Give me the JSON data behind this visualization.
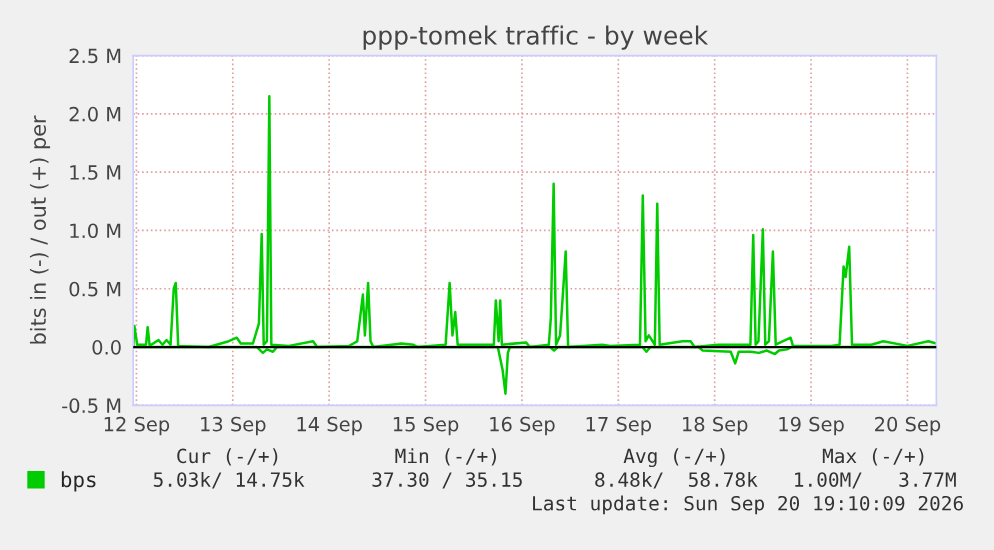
{
  "chart_data": {
    "type": "line",
    "title": "ppp-tomek traffic - by week",
    "ylabel": "bits in (-) / out (+) per",
    "xlim": [
      "2026-09-12T11:12",
      "2026-09-20T19:12"
    ],
    "xticks": [
      {
        "value": "2026-09-12T12:00",
        "label": "12 Sep"
      },
      {
        "value": "2026-09-13T12:00",
        "label": "13 Sep"
      },
      {
        "value": "2026-09-14T12:00",
        "label": "14 Sep"
      },
      {
        "value": "2026-09-15T12:00",
        "label": "15 Sep"
      },
      {
        "value": "2026-09-16T12:00",
        "label": "16 Sep"
      },
      {
        "value": "2026-09-17T12:00",
        "label": "17 Sep"
      },
      {
        "value": "2026-09-18T12:00",
        "label": "18 Sep"
      },
      {
        "value": "2026-09-19T12:00",
        "label": "19 Sep"
      },
      {
        "value": "2026-09-20T12:00",
        "label": "20 Sep"
      }
    ],
    "ylim": [
      -0.5,
      2.5
    ],
    "yticks": [
      {
        "value": -0.5,
        "label": "-0.5 M"
      },
      {
        "value": 0,
        "label": "0.0"
      },
      {
        "value": 0.5,
        "label": "0.5 M"
      },
      {
        "value": 1.0,
        "label": "1.0 M"
      },
      {
        "value": 1.5,
        "label": "1.5 M"
      },
      {
        "value": 2.0,
        "label": "2.0 M"
      },
      {
        "value": 2.5,
        "label": "2.5 M"
      }
    ],
    "grid": true,
    "legend": "bottom",
    "ref_lines": [
      {
        "axis": "y",
        "value": 0,
        "color": "#000000"
      }
    ],
    "series": [
      {
        "name": "bps",
        "color": "#00cc00",
        "x": [
          "2026-09-12T11:12",
          "2026-09-12T11:30",
          "2026-09-12T12:12",
          "2026-09-12T14:24",
          "2026-09-12T14:48",
          "2026-09-12T15:18",
          "2026-09-12T17:30",
          "2026-09-12T18:30",
          "2026-09-12T19:30",
          "2026-09-12T20:30",
          "2026-09-12T21:18",
          "2026-09-12T21:48",
          "2026-09-12T22:24",
          "2026-09-13T06:00",
          "2026-09-13T11:00",
          "2026-09-13T13:00",
          "2026-09-13T14:00",
          "2026-09-13T17:00",
          "2026-09-13T18:30",
          "2026-09-13T19:12",
          "2026-09-13T19:42",
          "2026-09-13T20:30",
          "2026-09-13T21:06",
          "2026-09-13T21:36",
          "2026-09-14T02:00",
          "2026-09-14T08:00",
          "2026-09-14T09:00",
          "2026-09-14T17:00",
          "2026-09-14T19:00",
          "2026-09-14T20:24",
          "2026-09-14T20:54",
          "2026-09-14T21:42",
          "2026-09-14T22:18",
          "2026-09-14T23:00",
          "2026-09-15T06:00",
          "2026-09-15T09:00",
          "2026-09-15T10:00",
          "2026-09-15T17:00",
          "2026-09-15T18:00",
          "2026-09-15T18:42",
          "2026-09-15T19:24",
          "2026-09-15T20:00",
          "2026-09-15T21:00",
          "2026-09-16T05:00",
          "2026-09-16T05:30",
          "2026-09-16T06:12",
          "2026-09-16T06:36",
          "2026-09-16T07:00",
          "2026-09-16T13:00",
          "2026-09-16T14:00",
          "2026-09-16T18:42",
          "2026-09-16T19:12",
          "2026-09-16T19:54",
          "2026-09-16T20:30",
          "2026-09-16T21:30",
          "2026-09-16T22:06",
          "2026-09-16T22:54",
          "2026-09-16T23:30",
          "2026-09-17T08:00",
          "2026-09-17T10:00",
          "2026-09-17T17:24",
          "2026-09-17T18:06",
          "2026-09-17T18:48",
          "2026-09-17T19:36",
          "2026-09-17T21:06",
          "2026-09-17T21:42",
          "2026-09-17T22:18",
          "2026-09-18T04:00",
          "2026-09-18T06:00",
          "2026-09-18T07:00",
          "2026-09-18T12:54",
          "2026-09-18T20:54",
          "2026-09-18T21:36",
          "2026-09-18T22:12",
          "2026-09-18T22:54",
          "2026-09-19T00:00",
          "2026-09-19T00:36",
          "2026-09-19T01:30",
          "2026-09-19T02:30",
          "2026-09-19T03:12",
          "2026-09-19T06:54",
          "2026-09-19T07:30",
          "2026-09-19T17:00",
          "2026-09-19T19:06",
          "2026-09-19T20:06",
          "2026-09-19T20:36",
          "2026-09-19T21:30",
          "2026-09-19T22:12",
          "2026-09-20T03:00",
          "2026-09-20T06:00",
          "2026-09-20T12:00",
          "2026-09-20T17:12",
          "2026-09-20T19:12"
        ],
        "values": [
          0,
          0.18,
          0.02,
          0.02,
          0.17,
          0.01,
          0.06,
          0.02,
          0.06,
          0.02,
          0.5,
          0.55,
          0.01,
          0,
          0.05,
          0.08,
          0.03,
          0.03,
          0.2,
          0.97,
          0.02,
          0.05,
          2.15,
          0.02,
          0.01,
          0.05,
          0,
          0.01,
          0.05,
          0.45,
          0.1,
          0.55,
          0.05,
          0,
          0.03,
          0.02,
          0,
          0.02,
          0.55,
          0.1,
          0.3,
          0.02,
          0.02,
          0.02,
          0.4,
          0.05,
          0.4,
          0.02,
          0.04,
          0,
          0.02,
          0.25,
          1.4,
          0.02,
          0.1,
          0.4,
          0.82,
          0,
          0.02,
          0.01,
          0.02,
          1.3,
          0.05,
          0.1,
          0.02,
          1.23,
          0.02,
          0.05,
          0.05,
          0,
          0.02,
          0.02,
          0.96,
          0.02,
          0.05,
          1.01,
          0.02,
          0.05,
          0.82,
          0.02,
          0.08,
          0.01,
          0.01,
          0.02,
          0.69,
          0.6,
          0.86,
          0.02,
          0.02,
          0.05,
          0.01,
          0.05,
          0.03
        ]
      },
      {
        "color": "#00cc00",
        "x": [
          "2026-09-12T11:12",
          "2026-09-13T18:00",
          "2026-09-13T19:30",
          "2026-09-13T20:30",
          "2026-09-13T22:00",
          "2026-09-13T23:00",
          "2026-09-16T06:00",
          "2026-09-16T07:12",
          "2026-09-16T07:54",
          "2026-09-16T08:30",
          "2026-09-16T09:00",
          "2026-09-16T19:00",
          "2026-09-16T20:00",
          "2026-09-16T21:00",
          "2026-09-17T18:00",
          "2026-09-17T19:00",
          "2026-09-17T20:00",
          "2026-09-18T08:00",
          "2026-09-18T09:00",
          "2026-09-18T16:00",
          "2026-09-18T17:06",
          "2026-09-18T18:00",
          "2026-09-18T21:00",
          "2026-09-18T23:00",
          "2026-09-19T01:00",
          "2026-09-19T03:00",
          "2026-09-19T04:00",
          "2026-09-19T06:00",
          "2026-09-19T07:00",
          "2026-09-20T19:12"
        ],
        "values": [
          0,
          0,
          -0.05,
          -0.02,
          -0.04,
          0,
          0,
          -0.2,
          -0.4,
          -0.05,
          0,
          0,
          -0.03,
          0,
          0,
          -0.04,
          0,
          0,
          -0.03,
          -0.04,
          -0.14,
          -0.04,
          -0.04,
          -0.05,
          -0.03,
          -0.06,
          -0.03,
          -0.02,
          0,
          0
        ]
      }
    ],
    "annotations": [
      "Cur (-/+)",
      "Min (-/+)",
      "Avg (-/+)",
      "Max (-/+)",
      "5.03k/ 14.75k",
      "37.30 / 35.15",
      "8.48k/  58.78k",
      "1.00M/   3.77M",
      "Last update: Sun Sep 20 19:10:09 2026"
    ]
  }
}
